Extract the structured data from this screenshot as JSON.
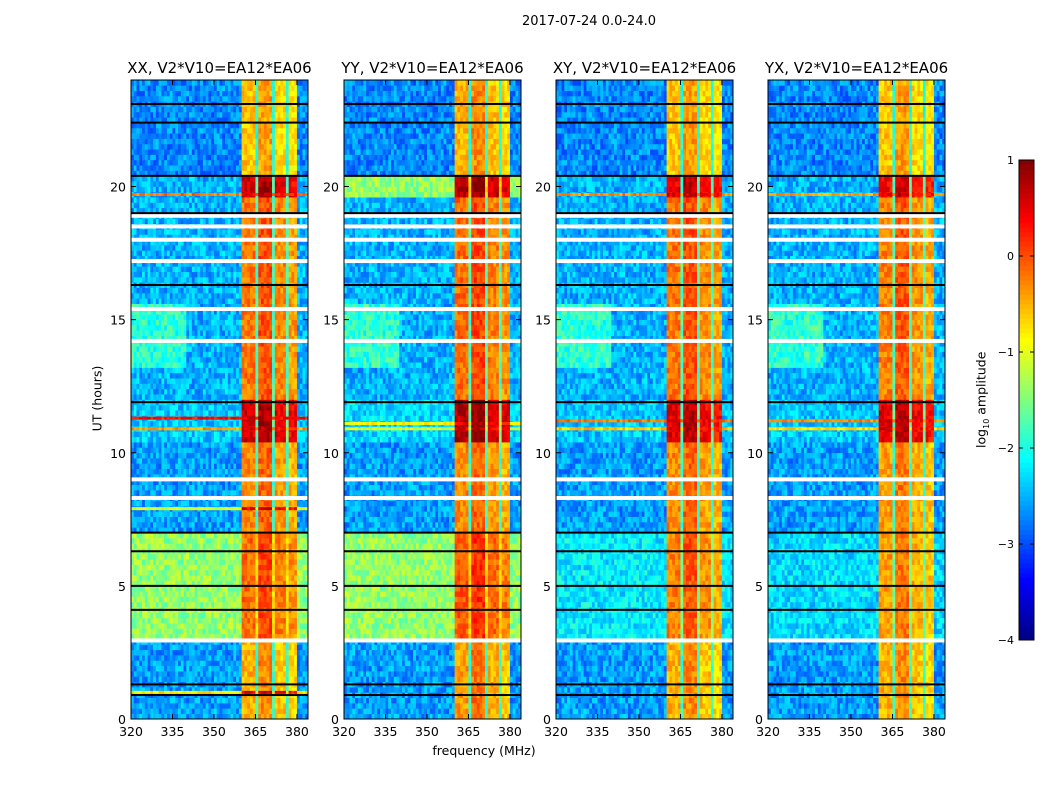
{
  "figure": {
    "suptitle": "2017-07-24 0.0-24.0",
    "xlabel": "frequency (MHz)",
    "ylabel": "UT (hours)",
    "colorbar_label_prefix": "log",
    "colorbar_label_sub": "10",
    "colorbar_label_suffix": " amplitude"
  },
  "chart_data": {
    "type": "heatmap",
    "title": "2017-07-24 0.0-24.0",
    "xlabel": "frequency (MHz)",
    "ylabel": "UT (hours)",
    "x_range": [
      320,
      384
    ],
    "y_range": [
      0,
      24
    ],
    "xticks": [
      320,
      335,
      350,
      365,
      380
    ],
    "yticks": [
      0,
      5,
      10,
      15,
      20
    ],
    "colormap": "jet",
    "colorbar": {
      "label": "log10 amplitude",
      "range": [
        -4,
        1
      ],
      "ticks": [
        1,
        0,
        -1,
        -2,
        -3,
        -4
      ]
    },
    "rfi_bands": [
      {
        "from": 360,
        "to": 365,
        "value": -0.5
      },
      {
        "from": 366,
        "to": 371,
        "value": -0.3
      },
      {
        "from": 372,
        "to": 376,
        "value": -0.6
      },
      {
        "from": 377,
        "to": 380,
        "value": -0.7
      }
    ],
    "panels": [
      {
        "title": "XX, V2*V10=EA12*EA06",
        "segments": [
          {
            "from": 0,
            "to": 3.0,
            "bg": -2.6,
            "rfi_boost": 0.0
          },
          {
            "from": 3.0,
            "to": 7.0,
            "bg": -1.4,
            "rfi_boost": 0.35
          },
          {
            "from": 7.0,
            "to": 10.4,
            "bg": -2.6,
            "rfi_boost": 0.2
          },
          {
            "from": 10.4,
            "to": 12.0,
            "bg": -2.4,
            "rfi_boost": 1.1
          },
          {
            "from": 12.0,
            "to": 19.6,
            "bg": -2.5,
            "rfi_boost": 0.3
          },
          {
            "from": 19.6,
            "to": 20.4,
            "bg": -2.5,
            "rfi_boost": 1.1
          },
          {
            "from": 20.4,
            "to": 24,
            "bg": -2.7,
            "rfi_boost": -0.1
          }
        ],
        "flagged_hours": [
          2.95,
          8.3,
          9.0,
          14.2,
          15.4,
          17.2,
          18.0,
          18.5,
          18.9
        ],
        "black_hours": [
          0.9,
          1.3,
          4.1,
          5.0,
          6.3,
          7.0,
          11.9,
          16.3,
          19.0,
          20.4,
          22.4,
          23.1
        ],
        "lines": [
          {
            "hour": 11.3,
            "value": 0.3
          },
          {
            "hour": 10.9,
            "value": -0.4
          },
          {
            "hour": 19.7,
            "value": -0.2
          },
          {
            "hour": 1.0,
            "value": -0.8
          },
          {
            "hour": 7.9,
            "value": -1.0
          }
        ]
      },
      {
        "title": "YY, V2*V10=EA12*EA06",
        "segments": [
          {
            "from": 0,
            "to": 3.0,
            "bg": -2.6,
            "rfi_boost": 0.1
          },
          {
            "from": 3.0,
            "to": 7.0,
            "bg": -1.4,
            "rfi_boost": 0.45
          },
          {
            "from": 7.0,
            "to": 10.4,
            "bg": -2.6,
            "rfi_boost": 0.2
          },
          {
            "from": 10.4,
            "to": 12.0,
            "bg": -2.3,
            "rfi_boost": 1.2
          },
          {
            "from": 12.0,
            "to": 19.6,
            "bg": -2.5,
            "rfi_boost": 0.35
          },
          {
            "from": 19.6,
            "to": 20.4,
            "bg": -1.4,
            "rfi_boost": 1.2
          },
          {
            "from": 20.4,
            "to": 24,
            "bg": -2.7,
            "rfi_boost": 0.0
          }
        ],
        "flagged_hours": [
          2.95,
          8.3,
          9.0,
          14.2,
          15.4,
          17.2,
          18.0,
          18.5,
          18.9
        ],
        "black_hours": [
          0.9,
          1.3,
          4.1,
          5.0,
          6.3,
          7.0,
          11.9,
          16.3,
          19.0,
          20.4,
          22.4,
          23.1
        ],
        "lines": [
          {
            "hour": 11.1,
            "value": -0.9
          },
          {
            "hour": 10.9,
            "value": -1.1
          }
        ]
      },
      {
        "title": "XY, V2*V10=EA12*EA06",
        "segments": [
          {
            "from": 0,
            "to": 3.0,
            "bg": -2.6,
            "rfi_boost": 0.0
          },
          {
            "from": 3.0,
            "to": 7.0,
            "bg": -2.2,
            "rfi_boost": 0.25
          },
          {
            "from": 7.0,
            "to": 10.4,
            "bg": -2.6,
            "rfi_boost": 0.2
          },
          {
            "from": 10.4,
            "to": 12.0,
            "bg": -2.4,
            "rfi_boost": 1.0
          },
          {
            "from": 12.0,
            "to": 19.6,
            "bg": -2.5,
            "rfi_boost": 0.3
          },
          {
            "from": 19.6,
            "to": 20.4,
            "bg": -2.5,
            "rfi_boost": 1.0
          },
          {
            "from": 20.4,
            "to": 24,
            "bg": -2.7,
            "rfi_boost": -0.1
          }
        ],
        "flagged_hours": [
          2.95,
          8.3,
          9.0,
          14.2,
          15.4,
          17.2,
          18.0,
          18.5,
          18.9
        ],
        "black_hours": [
          0.9,
          1.3,
          4.1,
          5.0,
          6.3,
          7.0,
          11.9,
          16.3,
          19.0,
          20.4,
          22.4,
          23.1
        ],
        "lines": [
          {
            "hour": 11.2,
            "value": -0.2
          },
          {
            "hour": 10.9,
            "value": -0.6
          },
          {
            "hour": 19.7,
            "value": -0.3
          }
        ]
      },
      {
        "title": "YX, V2*V10=EA12*EA06",
        "segments": [
          {
            "from": 0,
            "to": 3.0,
            "bg": -2.6,
            "rfi_boost": 0.0
          },
          {
            "from": 3.0,
            "to": 7.0,
            "bg": -2.3,
            "rfi_boost": 0.1
          },
          {
            "from": 7.0,
            "to": 10.4,
            "bg": -2.6,
            "rfi_boost": 0.1
          },
          {
            "from": 10.4,
            "to": 12.0,
            "bg": -2.4,
            "rfi_boost": 1.0
          },
          {
            "from": 12.0,
            "to": 19.6,
            "bg": -2.5,
            "rfi_boost": 0.25
          },
          {
            "from": 19.6,
            "to": 20.4,
            "bg": -2.5,
            "rfi_boost": 0.9
          },
          {
            "from": 20.4,
            "to": 24,
            "bg": -2.7,
            "rfi_boost": -0.1
          }
        ],
        "flagged_hours": [
          2.95,
          8.3,
          9.0,
          14.2,
          15.4,
          17.2,
          18.0,
          18.5,
          18.9
        ],
        "black_hours": [
          0.9,
          1.3,
          4.1,
          5.0,
          6.3,
          7.0,
          11.9,
          16.3,
          19.0,
          20.4,
          22.4,
          23.1
        ],
        "lines": [
          {
            "hour": 11.2,
            "value": -0.3
          },
          {
            "hour": 10.9,
            "value": -0.7
          },
          {
            "hour": 19.7,
            "value": -0.4
          }
        ]
      }
    ]
  }
}
